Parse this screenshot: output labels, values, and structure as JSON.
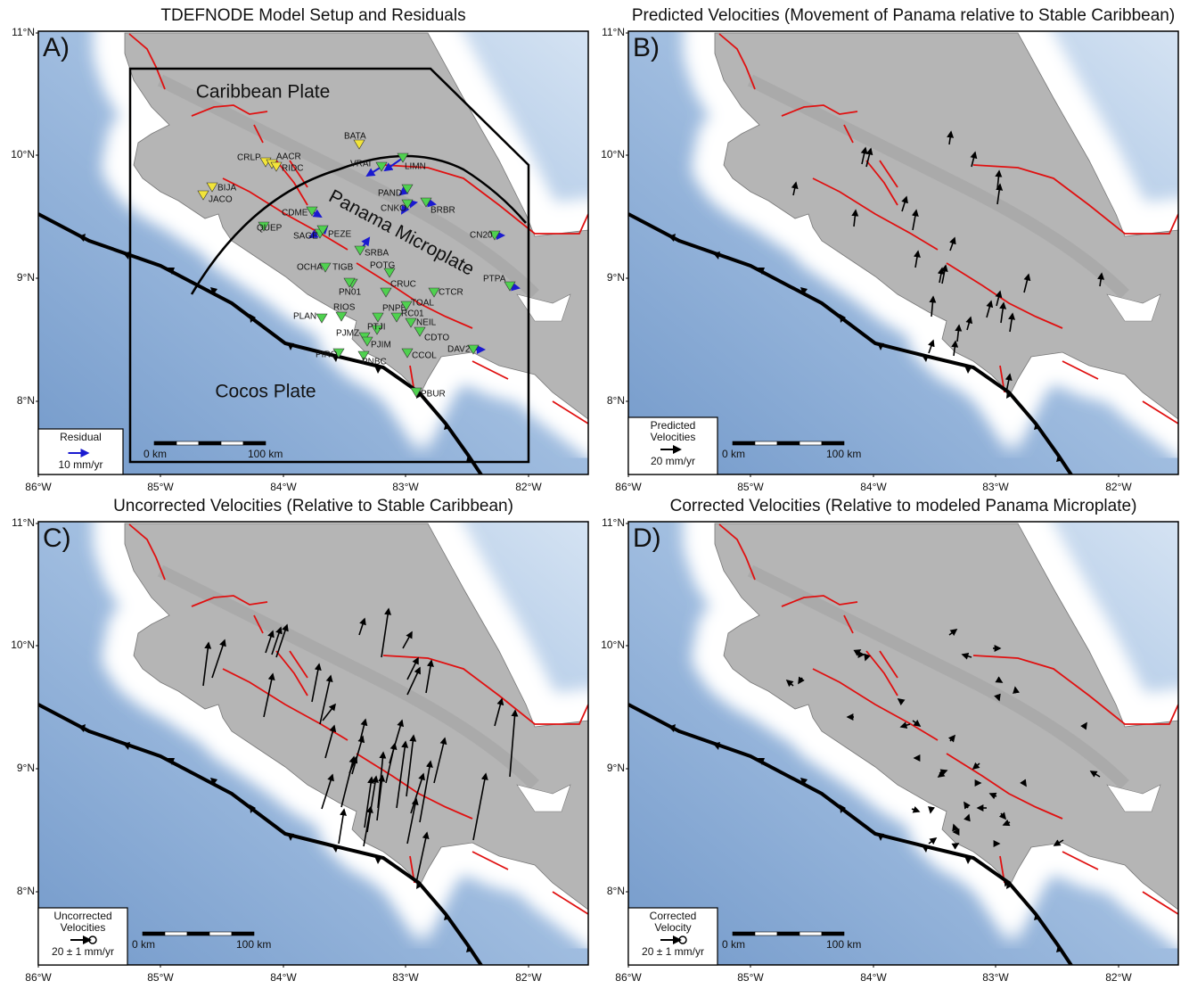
{
  "figure": {
    "panels": [
      {
        "letter": "A)",
        "title": "TDEFNODE Model Setup and Residuals",
        "legend": [
          "Residual",
          "10 mm/yr"
        ]
      },
      {
        "letter": "B)",
        "title": "Predicted Velocities (Movement of Panama relative to Stable Caribbean)",
        "legend": [
          "Predicted",
          "Velocities",
          "20  mm/yr"
        ]
      },
      {
        "letter": "C)",
        "title": "Uncorrected Velocities (Relative to Stable Caribbean)",
        "legend": [
          "Uncorrected",
          "Velocities",
          "20 ± 1 mm/yr"
        ]
      },
      {
        "letter": "D)",
        "title": "Corrected Velocities (Relative to modeled Panama Microplate)",
        "legend": [
          "Corrected",
          "Velocity",
          "20 ± 1 mm/yr"
        ]
      }
    ],
    "axes": {
      "lat_ticks": [
        "11°N",
        "10°N",
        "9°N",
        "8°N"
      ],
      "lon_ticks": [
        "86°W",
        "85°W",
        "84°W",
        "83°W",
        "82°W"
      ]
    },
    "scale_bar": [
      "0 km",
      "100 km"
    ],
    "plate_labels": [
      "Caribbean Plate",
      "Panama Microplate",
      "Cocos Plate"
    ],
    "stations": [
      "BATA",
      "CRLP",
      "AACR",
      "RIDC",
      "BIJA",
      "JACO",
      "VRAI",
      "LIMN",
      "PAND",
      "CNKO",
      "BRBR",
      "CDME",
      "QUEP",
      "SAGE",
      "PEZE",
      "SRBA",
      "CN20",
      "OCHA",
      "TIGB",
      "POTG",
      "PTPA",
      "PN01",
      "CRUC",
      "CTCR",
      "RIOS",
      "PNPB",
      "TOAL",
      "RC01",
      "PLAN",
      "NEIL",
      "PTJI",
      "PJMZ",
      "PJIM",
      "CDTO",
      "DAV2",
      "PIRO",
      "PNBC",
      "CCOL",
      "PBUR"
    ]
  }
}
